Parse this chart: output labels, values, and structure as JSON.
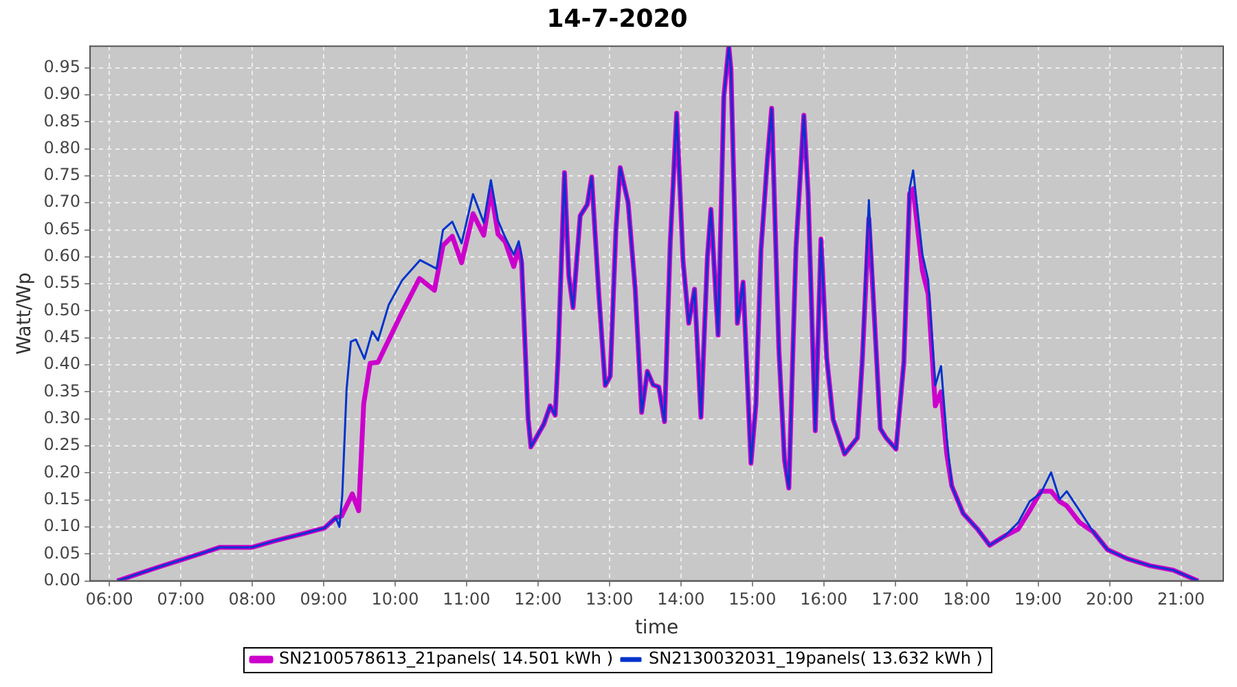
{
  "chart_data": {
    "type": "line",
    "title": "14-7-2020",
    "xlabel": "time",
    "ylabel": "Watt/Wp",
    "xlim": [
      5.73,
      21.59
    ],
    "ylim": [
      0,
      0.99
    ],
    "xticks": [
      {
        "value": 6,
        "label": "06:00"
      },
      {
        "value": 7,
        "label": "07:00"
      },
      {
        "value": 8,
        "label": "08:00"
      },
      {
        "value": 9,
        "label": "09:00"
      },
      {
        "value": 10,
        "label": "10:00"
      },
      {
        "value": 11,
        "label": "11:00"
      },
      {
        "value": 12,
        "label": "12:00"
      },
      {
        "value": 13,
        "label": "13:00"
      },
      {
        "value": 14,
        "label": "14:00"
      },
      {
        "value": 15,
        "label": "15:00"
      },
      {
        "value": 16,
        "label": "16:00"
      },
      {
        "value": 17,
        "label": "17:00"
      },
      {
        "value": 18,
        "label": "18:00"
      },
      {
        "value": 19,
        "label": "19:00"
      },
      {
        "value": 20,
        "label": "20:00"
      },
      {
        "value": 21,
        "label": "21:00"
      }
    ],
    "yticks": [
      {
        "value": 0,
        "label": "0.00"
      },
      {
        "value": 0.05,
        "label": "0.05"
      },
      {
        "value": 0.1,
        "label": "0.10"
      },
      {
        "value": 0.15,
        "label": "0.15"
      },
      {
        "value": 0.2,
        "label": "0.20"
      },
      {
        "value": 0.25,
        "label": "0.25"
      },
      {
        "value": 0.3,
        "label": "0.30"
      },
      {
        "value": 0.35,
        "label": "0.35"
      },
      {
        "value": 0.4,
        "label": "0.40"
      },
      {
        "value": 0.45,
        "label": "0.45"
      },
      {
        "value": 0.5,
        "label": "0.50"
      },
      {
        "value": 0.55,
        "label": "0.55"
      },
      {
        "value": 0.6,
        "label": "0.60"
      },
      {
        "value": 0.65,
        "label": "0.65"
      },
      {
        "value": 0.7,
        "label": "0.70"
      },
      {
        "value": 0.75,
        "label": "0.75"
      },
      {
        "value": 0.8,
        "label": "0.80"
      },
      {
        "value": 0.85,
        "label": "0.85"
      },
      {
        "value": 0.9,
        "label": "0.90"
      },
      {
        "value": 0.95,
        "label": "0.95"
      }
    ],
    "grid": true,
    "legend": "bottom",
    "marker": "none",
    "line_style": "solid",
    "series": [
      {
        "name": "SN2100578613_21panels( 14.501 kWh )",
        "color": "#cc00cc",
        "x": [
          6.11,
          6.65,
          7.29,
          7.54,
          7.99,
          8.31,
          8.7,
          9.01,
          9.17,
          9.25,
          9.4,
          9.49,
          9.56,
          9.65,
          9.76,
          10.1,
          10.34,
          10.55,
          10.67,
          10.8,
          10.93,
          11.09,
          11.24,
          11.34,
          11.44,
          11.54,
          11.66,
          11.73,
          11.77,
          11.86,
          11.9,
          12.08,
          12.17,
          12.24,
          12.28,
          12.37,
          12.43,
          12.49,
          12.59,
          12.69,
          12.75,
          12.85,
          12.94,
          13.01,
          13.09,
          13.15,
          13.26,
          13.36,
          13.45,
          13.53,
          13.61,
          13.69,
          13.77,
          13.85,
          13.94,
          14.03,
          14.11,
          14.19,
          14.28,
          14.37,
          14.42,
          14.52,
          14.6,
          14.67,
          14.7,
          14.79,
          14.87,
          14.98,
          15.05,
          15.12,
          15.21,
          15.27,
          15.37,
          15.45,
          15.51,
          15.61,
          15.72,
          15.78,
          15.88,
          15.96,
          16.04,
          16.13,
          16.29,
          16.47,
          16.54,
          16.63,
          16.71,
          16.79,
          16.87,
          17.01,
          17.12,
          17.2,
          17.25,
          17.38,
          17.46,
          17.56,
          17.64,
          17.72,
          17.79,
          17.95,
          18.15,
          18.32,
          18.53,
          18.72,
          18.88,
          19.04,
          19.18,
          19.3,
          19.4,
          19.58,
          19.77,
          19.97,
          20.25,
          20.57,
          20.89,
          21.24
        ],
        "values": [
          0,
          0.024,
          0.051,
          0.062,
          0.062,
          0.074,
          0.087,
          0.098,
          0.117,
          0.12,
          0.161,
          0.13,
          0.328,
          0.403,
          0.405,
          0.498,
          0.56,
          0.538,
          0.621,
          0.638,
          0.589,
          0.68,
          0.64,
          0.724,
          0.642,
          0.628,
          0.582,
          0.617,
          0.589,
          0.303,
          0.248,
          0.29,
          0.324,
          0.307,
          0.413,
          0.756,
          0.566,
          0.506,
          0.676,
          0.697,
          0.748,
          0.532,
          0.362,
          0.379,
          0.65,
          0.765,
          0.701,
          0.54,
          0.312,
          0.388,
          0.363,
          0.359,
          0.295,
          0.625,
          0.866,
          0.591,
          0.477,
          0.54,
          0.303,
          0.599,
          0.688,
          0.455,
          0.896,
          0.99,
          0.947,
          0.477,
          0.553,
          0.218,
          0.328,
          0.612,
          0.781,
          0.875,
          0.43,
          0.223,
          0.172,
          0.616,
          0.862,
          0.718,
          0.278,
          0.633,
          0.413,
          0.299,
          0.235,
          0.265,
          0.413,
          0.671,
          0.481,
          0.282,
          0.265,
          0.244,
          0.405,
          0.717,
          0.726,
          0.574,
          0.531,
          0.324,
          0.35,
          0.235,
          0.176,
          0.125,
          0.096,
          0.066,
          0.083,
          0.096,
          0.13,
          0.166,
          0.166,
          0.147,
          0.139,
          0.108,
          0.091,
          0.058,
          0.041,
          0.028,
          0.02,
          0
        ]
      },
      {
        "name": "SN2130032031_19panels( 13.632 kWh )",
        "color": "#0033cc",
        "x": [
          6.11,
          6.65,
          7.29,
          7.54,
          7.99,
          8.31,
          8.7,
          9.01,
          9.17,
          9.22,
          9.26,
          9.32,
          9.38,
          9.45,
          9.57,
          9.68,
          9.76,
          9.91,
          10.1,
          10.35,
          10.58,
          10.67,
          10.8,
          10.93,
          11.09,
          11.24,
          11.34,
          11.44,
          11.54,
          11.66,
          11.73,
          11.77,
          11.86,
          11.9,
          12.08,
          12.17,
          12.24,
          12.28,
          12.37,
          12.43,
          12.49,
          12.59,
          12.69,
          12.75,
          12.85,
          12.94,
          13.01,
          13.09,
          13.15,
          13.26,
          13.36,
          13.45,
          13.53,
          13.61,
          13.69,
          13.77,
          13.85,
          13.94,
          14.03,
          14.11,
          14.19,
          14.28,
          14.37,
          14.42,
          14.52,
          14.6,
          14.67,
          14.7,
          14.79,
          14.87,
          14.98,
          15.05,
          15.12,
          15.21,
          15.27,
          15.37,
          15.45,
          15.51,
          15.61,
          15.72,
          15.78,
          15.88,
          15.96,
          16.04,
          16.13,
          16.29,
          16.47,
          16.54,
          16.63,
          16.71,
          16.79,
          16.87,
          17.01,
          17.12,
          17.2,
          17.25,
          17.38,
          17.46,
          17.56,
          17.64,
          17.72,
          17.79,
          17.95,
          18.15,
          18.32,
          18.53,
          18.72,
          18.88,
          19.04,
          19.18,
          19.3,
          19.4,
          19.58,
          19.77,
          19.97,
          20.25,
          20.57,
          20.89,
          21.24
        ],
        "values": [
          0,
          0.024,
          0.051,
          0.062,
          0.062,
          0.074,
          0.087,
          0.098,
          0.117,
          0.1,
          0.159,
          0.354,
          0.443,
          0.447,
          0.411,
          0.462,
          0.445,
          0.511,
          0.557,
          0.594,
          0.578,
          0.65,
          0.665,
          0.625,
          0.716,
          0.663,
          0.742,
          0.667,
          0.636,
          0.604,
          0.629,
          0.6,
          0.303,
          0.248,
          0.29,
          0.324,
          0.307,
          0.413,
          0.756,
          0.566,
          0.506,
          0.676,
          0.697,
          0.748,
          0.532,
          0.362,
          0.379,
          0.65,
          0.765,
          0.701,
          0.54,
          0.312,
          0.388,
          0.363,
          0.359,
          0.295,
          0.625,
          0.866,
          0.591,
          0.477,
          0.54,
          0.303,
          0.599,
          0.688,
          0.455,
          0.896,
          0.99,
          0.947,
          0.477,
          0.553,
          0.218,
          0.328,
          0.612,
          0.781,
          0.875,
          0.43,
          0.223,
          0.172,
          0.616,
          0.862,
          0.718,
          0.278,
          0.633,
          0.413,
          0.299,
          0.235,
          0.265,
          0.413,
          0.705,
          0.481,
          0.282,
          0.265,
          0.244,
          0.405,
          0.726,
          0.76,
          0.604,
          0.557,
          0.362,
          0.398,
          0.265,
          0.176,
          0.125,
          0.096,
          0.066,
          0.083,
          0.108,
          0.147,
          0.163,
          0.201,
          0.151,
          0.166,
          0.13,
          0.091,
          0.058,
          0.041,
          0.028,
          0.02,
          0
        ]
      }
    ]
  }
}
